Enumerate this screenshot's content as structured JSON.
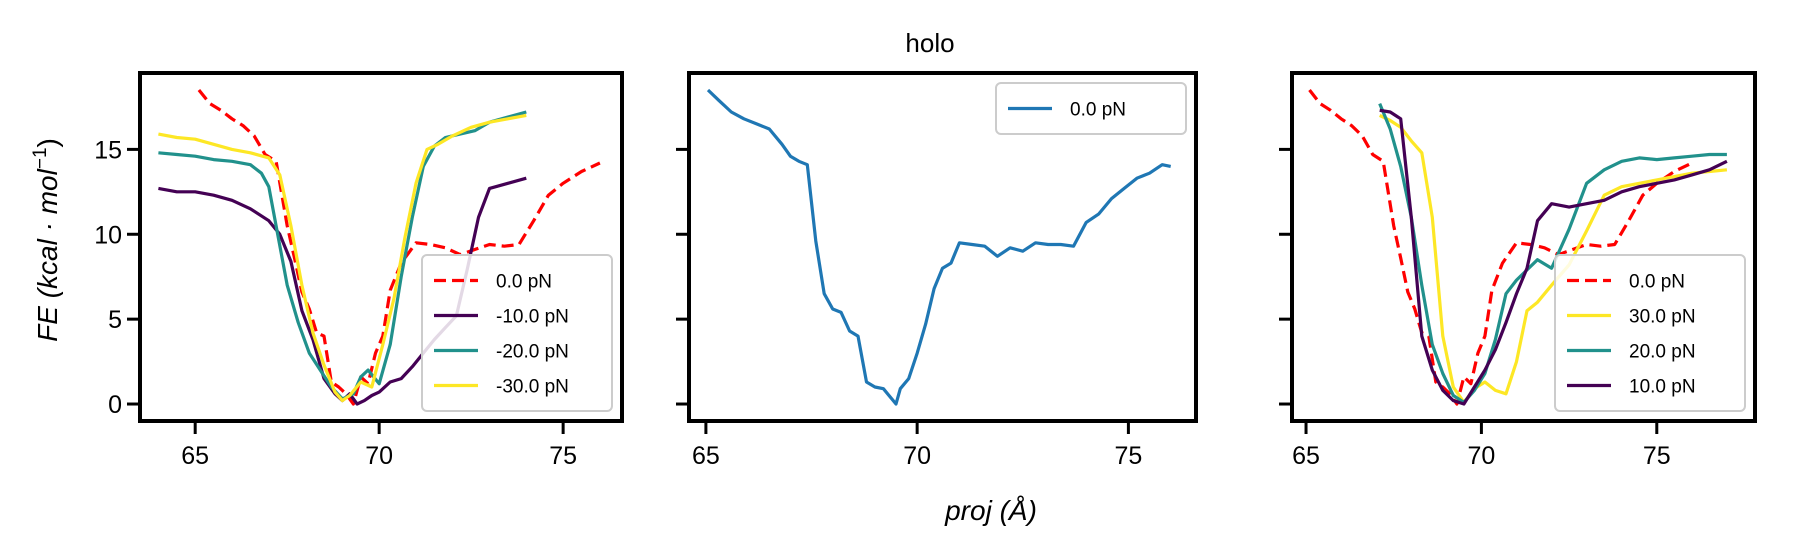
{
  "figure": {
    "title": "holo",
    "xlabel": "proj (Å)",
    "ylabel_main": "FE (kcal · mol",
    "ylabel_sup": "−1",
    "ylabel_close": ")"
  },
  "chart_data": [
    {
      "type": "line",
      "panel": "left",
      "xlim": [
        63.5,
        76.6
      ],
      "ylim": [
        -1,
        19.5
      ],
      "xticks": [
        65,
        70,
        75
      ],
      "yticks": [
        0,
        5,
        10,
        15
      ],
      "legend_position": "lower-right",
      "grid": false,
      "series": [
        {
          "name": "0.0 pN",
          "color": "#ff0000",
          "dash": "dashed",
          "x": [
            65.1,
            65.4,
            65.7,
            66.0,
            66.3,
            66.6,
            66.9,
            67.2,
            67.5,
            67.7,
            67.9,
            68.1,
            68.3,
            68.5,
            68.7,
            68.9,
            69.1,
            69.3,
            69.5,
            69.7,
            69.9,
            70.1,
            70.3,
            70.6,
            71.0,
            71.4,
            71.8,
            72.2,
            72.6,
            73.0,
            73.4,
            73.8,
            74.2,
            74.6,
            75.0,
            75.5,
            76.0
          ],
          "y": [
            18.5,
            17.7,
            17.3,
            16.8,
            16.4,
            15.8,
            14.7,
            14.3,
            10.5,
            8.6,
            6.6,
            5.6,
            4.2,
            4.0,
            1.3,
            1.0,
            0.6,
            0.0,
            1.6,
            1.2,
            3.0,
            4.0,
            6.7,
            8.3,
            9.5,
            9.4,
            9.2,
            8.8,
            9.1,
            9.4,
            9.3,
            9.4,
            10.8,
            12.3,
            13.0,
            13.7,
            14.2
          ]
        },
        {
          "name": "-10.0 pN",
          "color": "#440154",
          "dash": "solid",
          "x": [
            64.0,
            64.5,
            65.0,
            65.5,
            66.0,
            66.5,
            67.0,
            67.3,
            67.6,
            67.9,
            68.2,
            68.5,
            68.8,
            69.0,
            69.2,
            69.4,
            69.6,
            69.8,
            70.0,
            70.3,
            70.6,
            70.9,
            71.2,
            71.5,
            71.8,
            72.1,
            72.4,
            72.7,
            73.0,
            73.5,
            74.0
          ],
          "y": [
            12.7,
            12.5,
            12.5,
            12.3,
            12.0,
            11.5,
            10.8,
            10.0,
            8.4,
            5.5,
            3.8,
            1.5,
            0.6,
            0.2,
            0.6,
            0.0,
            0.2,
            0.5,
            0.7,
            1.3,
            1.5,
            2.2,
            3.0,
            3.8,
            4.5,
            5.2,
            8.0,
            11.0,
            12.7,
            13.0,
            13.3
          ]
        },
        {
          "name": "-20.0 pN",
          "color": "#21918c",
          "dash": "solid",
          "x": [
            64.0,
            64.5,
            65.0,
            65.5,
            66.0,
            66.5,
            66.8,
            67.0,
            67.2,
            67.5,
            67.8,
            68.1,
            68.4,
            68.7,
            69.0,
            69.3,
            69.5,
            69.7,
            70.0,
            70.3,
            70.6,
            70.9,
            71.2,
            71.5,
            71.8,
            72.2,
            72.6,
            73.0,
            73.5,
            74.0
          ],
          "y": [
            14.8,
            14.7,
            14.6,
            14.4,
            14.3,
            14.1,
            13.6,
            12.8,
            10.5,
            7.0,
            4.8,
            3.0,
            2.0,
            1.0,
            0.3,
            0.6,
            1.6,
            2.0,
            1.2,
            3.5,
            7.5,
            11.0,
            14.0,
            15.2,
            15.7,
            15.9,
            16.1,
            16.6,
            16.9,
            17.2
          ]
        },
        {
          "name": "-30.0 pN",
          "color": "#fde725",
          "dash": "solid",
          "x": [
            64.0,
            64.5,
            65.0,
            65.5,
            66.0,
            66.5,
            67.0,
            67.3,
            67.6,
            67.9,
            68.2,
            68.5,
            68.8,
            69.0,
            69.2,
            69.5,
            69.8,
            70.1,
            70.4,
            70.7,
            71.0,
            71.3,
            71.6,
            72.0,
            72.5,
            73.0,
            73.5,
            74.0
          ],
          "y": [
            15.9,
            15.7,
            15.6,
            15.3,
            15.0,
            14.8,
            14.5,
            13.5,
            10.5,
            7.0,
            4.2,
            2.3,
            0.7,
            0.2,
            0.5,
            1.3,
            1.0,
            3.5,
            6.2,
            9.8,
            13.0,
            15.0,
            15.3,
            15.8,
            16.3,
            16.6,
            16.8,
            17.0
          ]
        }
      ]
    },
    {
      "type": "line",
      "panel": "middle",
      "xlim": [
        64.6,
        76.6
      ],
      "ylim": [
        -1,
        19.5
      ],
      "xticks": [
        65,
        70,
        75
      ],
      "yticks": [
        0,
        5,
        10,
        15
      ],
      "legend_position": "upper-right",
      "grid": false,
      "series": [
        {
          "name": "0.0 pN",
          "color": "#1f77b4",
          "dash": "solid",
          "x": [
            65.05,
            65.3,
            65.6,
            65.9,
            66.2,
            66.5,
            66.8,
            67.0,
            67.2,
            67.4,
            67.6,
            67.8,
            68.0,
            68.2,
            68.4,
            68.6,
            68.8,
            69.0,
            69.2,
            69.4,
            69.5,
            69.6,
            69.8,
            70.0,
            70.2,
            70.4,
            70.6,
            70.8,
            71.0,
            71.3,
            71.6,
            71.9,
            72.2,
            72.5,
            72.8,
            73.1,
            73.4,
            73.7,
            74.0,
            74.3,
            74.6,
            74.9,
            75.2,
            75.5,
            75.8,
            76.0
          ],
          "y": [
            18.5,
            17.9,
            17.2,
            16.8,
            16.5,
            16.2,
            15.3,
            14.6,
            14.3,
            14.1,
            9.6,
            6.5,
            5.6,
            5.4,
            4.3,
            4.0,
            1.3,
            1.0,
            0.9,
            0.3,
            0.0,
            0.9,
            1.5,
            3.0,
            4.7,
            6.8,
            8.0,
            8.3,
            9.5,
            9.4,
            9.3,
            8.7,
            9.2,
            9.0,
            9.5,
            9.4,
            9.4,
            9.3,
            10.7,
            11.2,
            12.1,
            12.7,
            13.3,
            13.6,
            14.1,
            14.0
          ]
        }
      ]
    },
    {
      "type": "line",
      "panel": "right",
      "xlim": [
        64.6,
        77.8
      ],
      "ylim": [
        -1,
        19.5
      ],
      "xticks": [
        65,
        70,
        75
      ],
      "yticks": [
        0,
        5,
        10,
        15
      ],
      "legend_position": "lower-right",
      "grid": false,
      "series": [
        {
          "name": "0.0 pN",
          "color": "#ff0000",
          "dash": "dashed",
          "x": [
            65.1,
            65.4,
            65.7,
            66.0,
            66.3,
            66.6,
            66.9,
            67.2,
            67.5,
            67.7,
            67.9,
            68.1,
            68.3,
            68.5,
            68.7,
            68.9,
            69.1,
            69.3,
            69.5,
            69.7,
            69.9,
            70.1,
            70.3,
            70.6,
            71.0,
            71.4,
            71.8,
            72.2,
            72.6,
            73.0,
            73.4,
            73.8,
            74.2,
            74.6,
            75.0,
            75.5,
            76.0
          ],
          "y": [
            18.5,
            17.7,
            17.3,
            16.8,
            16.4,
            15.8,
            14.7,
            14.3,
            10.5,
            8.6,
            6.6,
            5.6,
            4.2,
            4.0,
            1.3,
            1.0,
            0.6,
            0.0,
            1.6,
            1.2,
            3.0,
            4.0,
            6.7,
            8.3,
            9.5,
            9.4,
            9.2,
            8.8,
            9.1,
            9.4,
            9.3,
            9.4,
            10.8,
            12.3,
            13.0,
            13.7,
            14.2
          ]
        },
        {
          "name": "30.0 pN",
          "color": "#fde725",
          "dash": "solid",
          "x": [
            67.1,
            67.4,
            67.7,
            68.0,
            68.3,
            68.6,
            68.9,
            69.2,
            69.5,
            69.8,
            70.1,
            70.4,
            70.7,
            71.0,
            71.3,
            71.6,
            72.0,
            72.5,
            73.0,
            73.5,
            74.0,
            74.5,
            75.0,
            75.5,
            76.0,
            76.5,
            77.0
          ],
          "y": [
            17.0,
            16.7,
            16.3,
            15.5,
            14.8,
            11.0,
            4.0,
            1.0,
            0.1,
            0.9,
            1.3,
            0.8,
            0.6,
            2.5,
            5.5,
            6.0,
            7.0,
            8.2,
            10.2,
            12.3,
            12.8,
            13.0,
            13.2,
            13.4,
            13.6,
            13.7,
            13.8
          ]
        },
        {
          "name": "20.0 pN",
          "color": "#21918c",
          "dash": "solid",
          "x": [
            67.1,
            67.4,
            67.7,
            68.0,
            68.3,
            68.6,
            68.9,
            69.2,
            69.5,
            69.8,
            70.1,
            70.4,
            70.7,
            71.0,
            71.3,
            71.6,
            72.0,
            72.5,
            73.0,
            73.5,
            74.0,
            74.5,
            75.0,
            75.5,
            76.0,
            76.5,
            77.0
          ],
          "y": [
            17.7,
            16.2,
            14.0,
            11.0,
            7.0,
            3.5,
            1.8,
            0.5,
            0.1,
            0.8,
            1.8,
            3.8,
            6.5,
            7.3,
            7.9,
            8.5,
            8.0,
            10.3,
            13.0,
            13.8,
            14.3,
            14.5,
            14.4,
            14.5,
            14.6,
            14.7,
            14.7
          ]
        },
        {
          "name": "10.0 pN",
          "color": "#440154",
          "dash": "solid",
          "x": [
            67.1,
            67.4,
            67.7,
            68.0,
            68.3,
            68.6,
            68.9,
            69.2,
            69.5,
            69.8,
            70.1,
            70.4,
            70.7,
            71.0,
            71.3,
            71.6,
            72.0,
            72.5,
            73.0,
            73.5,
            74.0,
            74.5,
            75.0,
            75.5,
            76.0,
            76.5,
            77.0
          ],
          "y": [
            17.3,
            17.2,
            16.8,
            11.0,
            4.0,
            2.0,
            0.8,
            0.2,
            0.0,
            1.0,
            2.0,
            3.2,
            4.8,
            6.5,
            8.0,
            10.8,
            11.8,
            11.6,
            11.8,
            12.0,
            12.5,
            12.8,
            13.0,
            13.2,
            13.5,
            13.8,
            14.3
          ]
        }
      ]
    }
  ]
}
